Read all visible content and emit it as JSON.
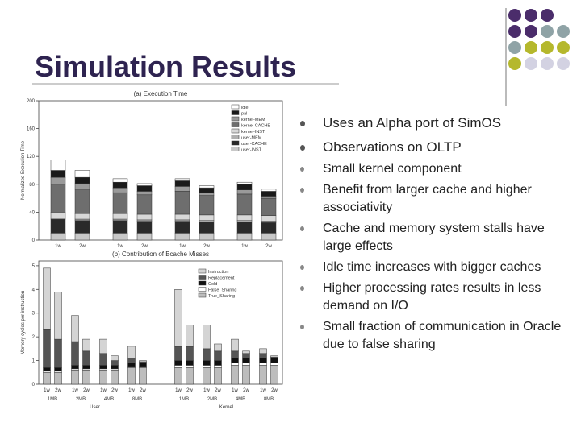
{
  "header": {
    "title": "Simulation Results"
  },
  "chart_data": [
    {
      "type": "bar",
      "stacked": true,
      "title": "(a) Execution Time",
      "y_label": "Normalized Execution Time",
      "categories": [
        "1w",
        "2w",
        "1w",
        "2w",
        "1w",
        "2w",
        "1w",
        "2w"
      ],
      "ylim": [
        0,
        200
      ],
      "yticks": [
        0,
        40,
        80,
        120,
        160,
        200
      ],
      "series": [
        {
          "name": "idle",
          "color": "#ffffff",
          "values": [
            15,
            10,
            5,
            3,
            3,
            3,
            3,
            3
          ]
        },
        {
          "name": "pal",
          "color": "#1a1a1a",
          "values": [
            10,
            9,
            8,
            8,
            8,
            7,
            8,
            7
          ]
        },
        {
          "name": "kernel-MEM",
          "color": "#9a9a9a",
          "values": [
            10,
            8,
            7,
            5,
            7,
            4,
            6,
            3
          ]
        },
        {
          "name": "kernel-CACHE",
          "color": "#6e6e6e",
          "values": [
            40,
            35,
            30,
            28,
            33,
            28,
            30,
            25
          ]
        },
        {
          "name": "kernel-INST",
          "color": "#d8d8d8",
          "values": [
            8,
            8,
            8,
            8,
            8,
            8,
            8,
            8
          ]
        },
        {
          "name": "user-MEM",
          "color": "#b0b0b0",
          "values": [
            2,
            2,
            2,
            2,
            2,
            2,
            2,
            2
          ]
        },
        {
          "name": "user-CACHE",
          "color": "#2a2a2a",
          "values": [
            20,
            18,
            18,
            17,
            17,
            16,
            16,
            15
          ]
        },
        {
          "name": "user-INST",
          "color": "#c8c8c8",
          "values": [
            10,
            10,
            10,
            10,
            10,
            10,
            10,
            10
          ]
        }
      ]
    },
    {
      "type": "bar",
      "stacked": true,
      "title": "(b) Contribution of Bcache Misses",
      "y_label": "Memory cycles per instruction",
      "categories": [
        "1w",
        "2w",
        "1w",
        "2w",
        "1w",
        "2w",
        "1w",
        "2w",
        "1w",
        "2w",
        "1w",
        "2w",
        "1w",
        "2w",
        "1w",
        "2w"
      ],
      "groups": [
        "1MB",
        "2MB",
        "4MB",
        "8MB",
        "1MB",
        "2MB",
        "4MB",
        "8MB"
      ],
      "supergroups": [
        "User",
        "Kernel"
      ],
      "ylim": [
        0,
        5.2
      ],
      "yticks": [
        0,
        1,
        2,
        3,
        4,
        5
      ],
      "series": [
        {
          "name": "Instruction",
          "color": "#d4d4d4",
          "values": [
            2.6,
            2.0,
            1.1,
            0.5,
            0.6,
            0.2,
            0.5,
            0.05,
            2.4,
            0.9,
            1.0,
            0.3,
            0.5,
            0.1,
            0.2,
            0.05
          ]
        },
        {
          "name": "Replacement",
          "color": "#555555",
          "values": [
            1.6,
            1.2,
            1.0,
            0.6,
            0.5,
            0.2,
            0.2,
            0.05,
            0.6,
            0.6,
            0.5,
            0.4,
            0.3,
            0.2,
            0.2,
            0.05
          ]
        },
        {
          "name": "Cold",
          "color": "#111111",
          "values": [
            0.15,
            0.15,
            0.15,
            0.15,
            0.15,
            0.15,
            0.15,
            0.15,
            0.2,
            0.2,
            0.2,
            0.2,
            0.2,
            0.2,
            0.2,
            0.2
          ]
        },
        {
          "name": "False_Sharing",
          "color": "#ffffff",
          "values": [
            0.05,
            0.05,
            0.05,
            0.05,
            0.05,
            0.05,
            0.05,
            0.05,
            0.1,
            0.1,
            0.1,
            0.1,
            0.1,
            0.1,
            0.1,
            0.1
          ]
        },
        {
          "name": "True_Sharing",
          "color": "#bdbdbd",
          "values": [
            0.5,
            0.5,
            0.6,
            0.6,
            0.6,
            0.6,
            0.7,
            0.7,
            0.7,
            0.7,
            0.7,
            0.7,
            0.8,
            0.8,
            0.8,
            0.8
          ]
        }
      ]
    }
  ],
  "bullets": [
    {
      "text": "Uses an Alpha port of SimOS"
    },
    {
      "text": "Observations on OLTP",
      "items": [
        "Small kernel component",
        "Benefit from larger cache and higher associativity",
        "Cache and memory system stalls have large effects",
        "Idle time increases with bigger caches",
        "Higher processing rates results in less demand on I/O",
        "Small fraction of communication in Oracle due to false sharing"
      ]
    }
  ]
}
